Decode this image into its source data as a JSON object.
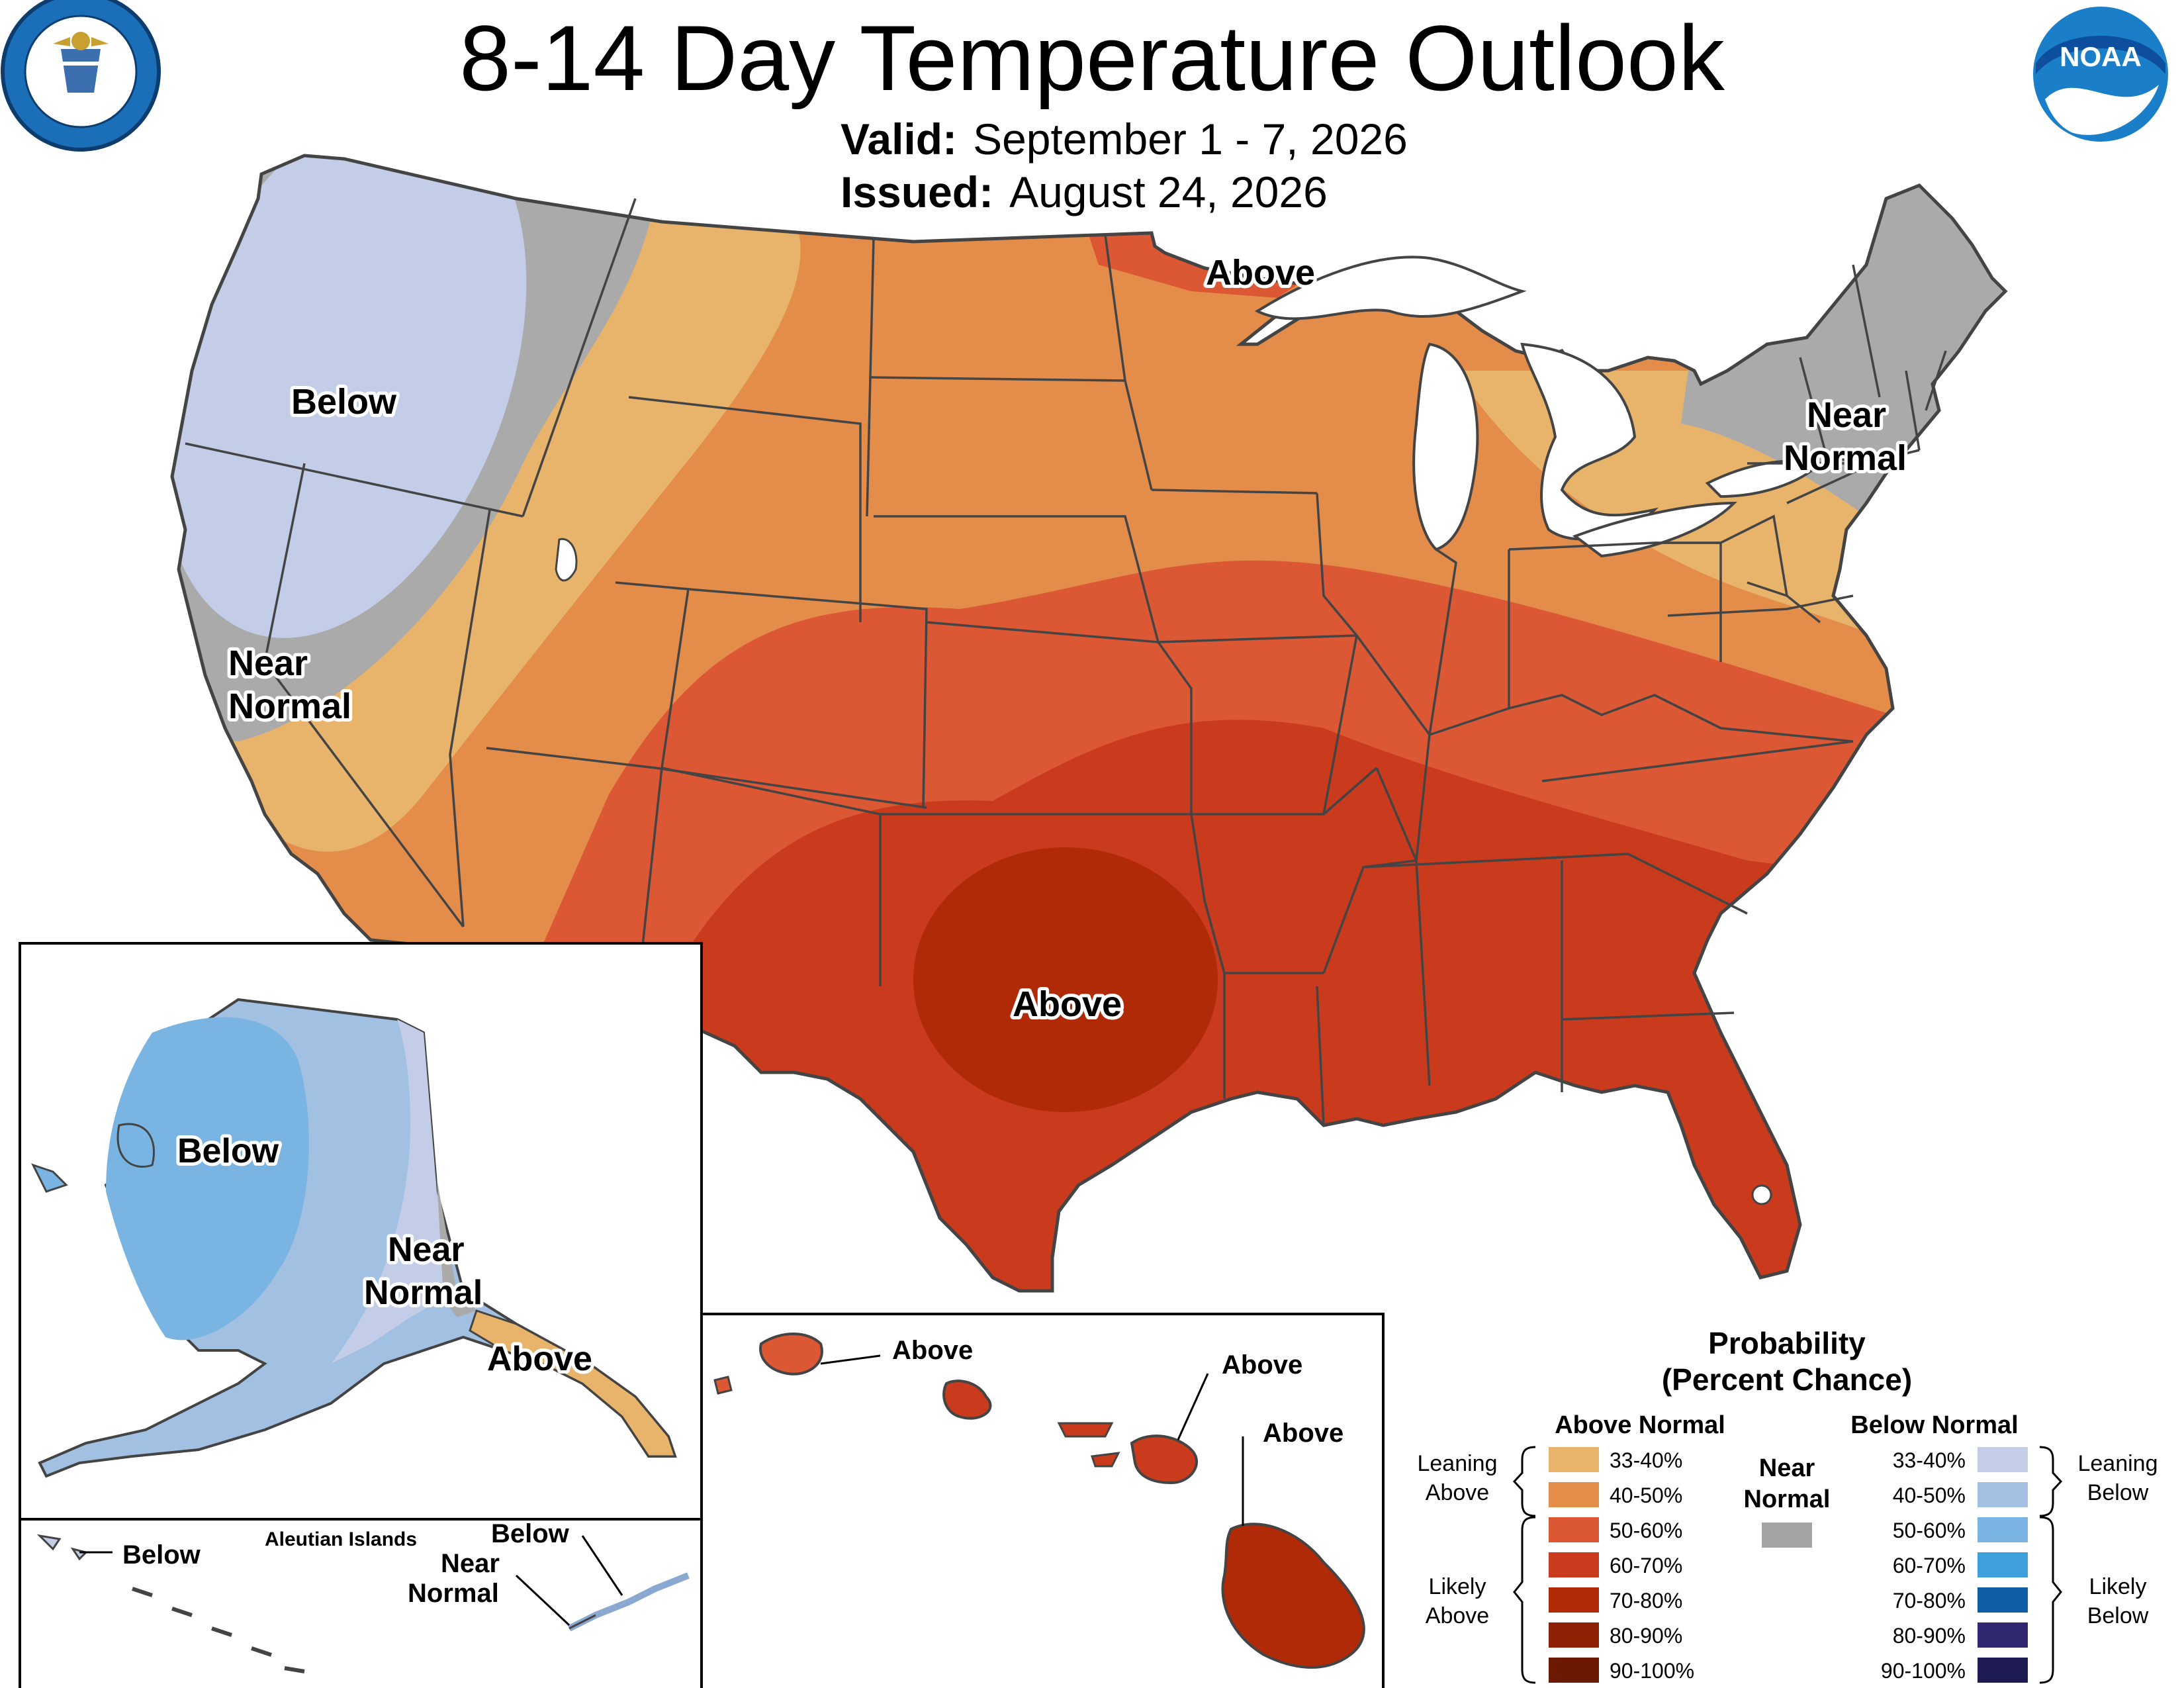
{
  "header": {
    "title": "8-14 Day Temperature Outlook",
    "valid_label": "Valid:",
    "valid_value": "September 1 - 7, 2026",
    "issued_label": "Issued:",
    "issued_value": "August 24, 2026"
  },
  "logos": {
    "left_seal_text": "DEPARTMENT OF COMMERCE · UNITED STATES OF AMERICA",
    "right_logo_text": "NOAA"
  },
  "map_labels": {
    "conus": {
      "above_north": "Above",
      "below_northwest": "Below",
      "near_normal_west_1": "Near",
      "near_normal_west_2": "Normal",
      "near_normal_northeast_1": "Near",
      "near_normal_northeast_2": "Normal",
      "above_texas": "Above"
    },
    "alaska": {
      "below": "Below",
      "near_normal_1": "Near",
      "near_normal_2": "Normal",
      "above": "Above"
    },
    "aleutians": {
      "title": "Aleutian Islands",
      "below_west": "Below",
      "below_east": "Below",
      "near_normal_1": "Near",
      "near_normal_2": "Normal"
    },
    "hawaii": {
      "above_kauai": "Above",
      "above_maui": "Above",
      "above_big_island": "Above"
    }
  },
  "legend": {
    "title_1": "Probability",
    "title_2": "(Percent Chance)",
    "above_header": "Above Normal",
    "below_header": "Below Normal",
    "near_header_1": "Near",
    "near_header_2": "Normal",
    "leaning_above_1": "Leaning",
    "leaning_above_2": "Above",
    "likely_above_1": "Likely",
    "likely_above_2": "Above",
    "leaning_below_1": "Leaning",
    "leaning_below_2": "Below",
    "likely_below_1": "Likely",
    "likely_below_2": "Below",
    "above_bins": [
      {
        "label": "33-40%",
        "color": "#E8B36A"
      },
      {
        "label": "40-50%",
        "color": "#E48C4A"
      },
      {
        "label": "50-60%",
        "color": "#DC5733"
      },
      {
        "label": "60-70%",
        "color": "#CA3A1C"
      },
      {
        "label": "70-80%",
        "color": "#B12A07"
      },
      {
        "label": "80-90%",
        "color": "#8E2004"
      },
      {
        "label": "90-100%",
        "color": "#6C1902"
      }
    ],
    "below_bins": [
      {
        "label": "33-40%",
        "color": "#C3CDE8"
      },
      {
        "label": "40-50%",
        "color": "#A2C0E1"
      },
      {
        "label": "50-60%",
        "color": "#79B4E2"
      },
      {
        "label": "60-70%",
        "color": "#3D9FDB"
      },
      {
        "label": "70-80%",
        "color": "#0E5DA5"
      },
      {
        "label": "80-90%",
        "color": "#312872"
      },
      {
        "label": "90-100%",
        "color": "#1E1A52"
      }
    ],
    "near_normal_color": "#A3A3A3"
  }
}
